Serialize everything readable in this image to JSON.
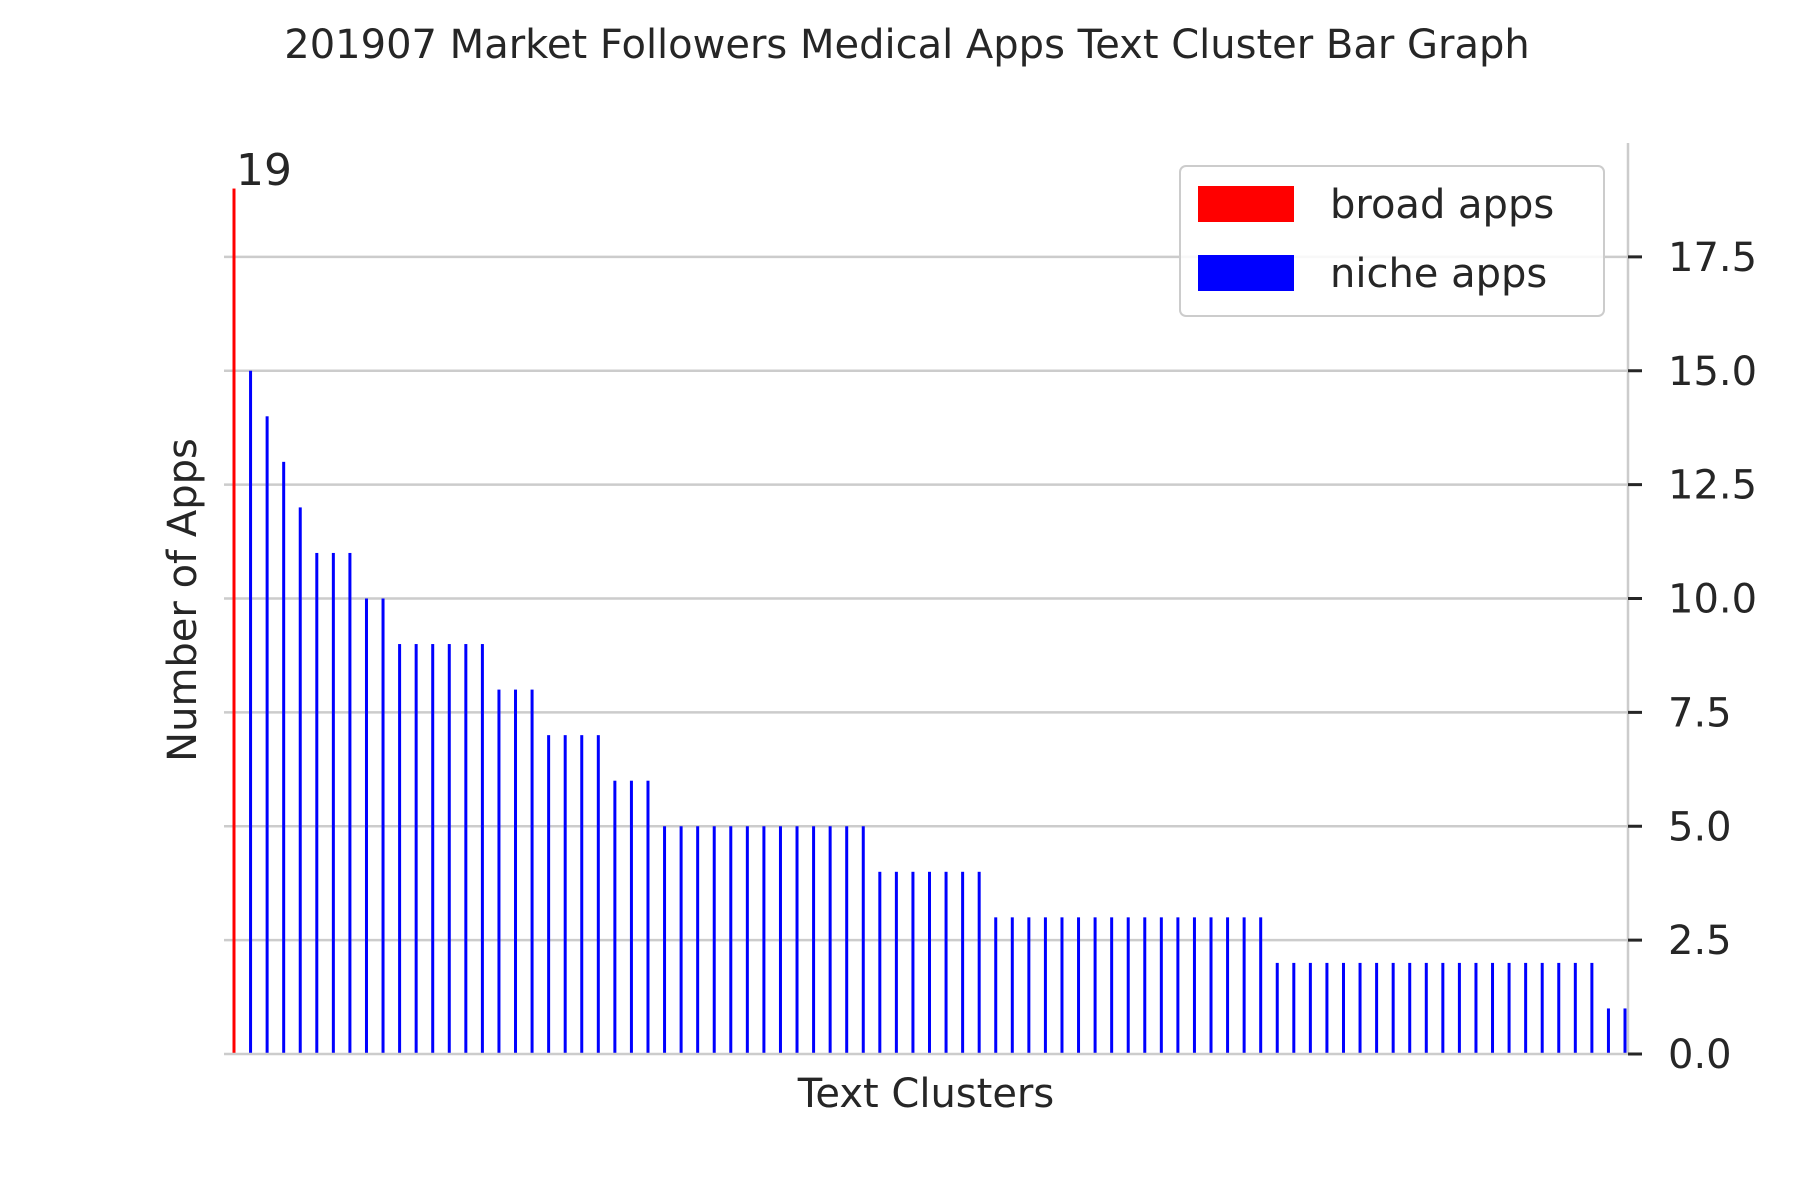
{
  "chart_data": {
    "type": "bar",
    "title": "201907 Market Followers Medical Apps Text Cluster Bar Graph",
    "xlabel": "Text Clusters",
    "ylabel": "Number of Apps",
    "ylim": [
      0,
      20
    ],
    "yticks": [
      0,
      2.5,
      5,
      7.5,
      10,
      12.5,
      15,
      17.5
    ],
    "ytick_labels": [
      "0.0",
      "2.5",
      "5.0",
      "7.5",
      "10.0",
      "12.5",
      "15.0",
      "17.5"
    ],
    "y_axis_side": "right",
    "grid": true,
    "legend_position": "top-right",
    "series": [
      {
        "name": "broad apps",
        "color": "#ff0000",
        "values": [
          19
        ]
      },
      {
        "name": "niche apps",
        "color": "#0000ff",
        "values": [
          15,
          14,
          13,
          12,
          11,
          11,
          11,
          10,
          10,
          9,
          9,
          9,
          9,
          9,
          9,
          8,
          8,
          8,
          7,
          7,
          7,
          7,
          6,
          6,
          6,
          5,
          5,
          5,
          5,
          5,
          5,
          5,
          5,
          5,
          5,
          5,
          5,
          5,
          4,
          4,
          4,
          4,
          4,
          4,
          4,
          3,
          3,
          3,
          3,
          3,
          3,
          3,
          3,
          3,
          3,
          3,
          3,
          3,
          3,
          3,
          3,
          3,
          2,
          2,
          2,
          2,
          2,
          2,
          2,
          2,
          2,
          2,
          2,
          2,
          2,
          2,
          2,
          2,
          2,
          2,
          2,
          2,
          1,
          1
        ]
      }
    ],
    "annotations": [
      {
        "text": "19"
      }
    ]
  }
}
